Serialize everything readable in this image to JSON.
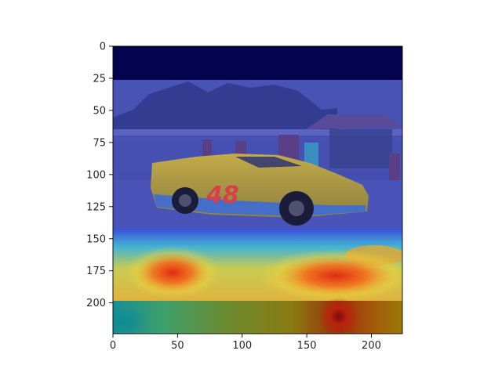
{
  "chart_data": {
    "type": "heatmap",
    "title": "",
    "xlabel": "",
    "ylabel": "",
    "xlim": [
      0,
      224
    ],
    "ylim": [
      224,
      0
    ],
    "y_inverted": true,
    "grid": false,
    "x_ticks": [
      0,
      50,
      100,
      150,
      200
    ],
    "y_ticks": [
      0,
      25,
      50,
      75,
      100,
      125,
      150,
      175,
      200
    ],
    "x_tick_labels": [
      "0",
      "50",
      "100",
      "150",
      "200"
    ],
    "y_tick_labels": [
      "0",
      "25",
      "50",
      "75",
      "100",
      "125",
      "150",
      "175",
      "200"
    ],
    "colormap": "jet",
    "background_image": "race car on track with spectators (car number 48)",
    "car_number": "48",
    "heat_bands": [
      {
        "y_from": 0,
        "y_to": 27,
        "level": 0.0
      },
      {
        "y_from": 27,
        "y_to": 145,
        "level": 0.15
      },
      {
        "y_from": 145,
        "y_to": 198,
        "level": 0.5
      },
      {
        "y_from": 198,
        "y_to": 224,
        "level": 0.7
      }
    ],
    "hotspots": [
      {
        "x": 47,
        "y": 177,
        "level": 0.95
      },
      {
        "x": 170,
        "y": 180,
        "level": 0.95
      },
      {
        "x": 172,
        "y": 212,
        "level": 1.0
      }
    ]
  }
}
